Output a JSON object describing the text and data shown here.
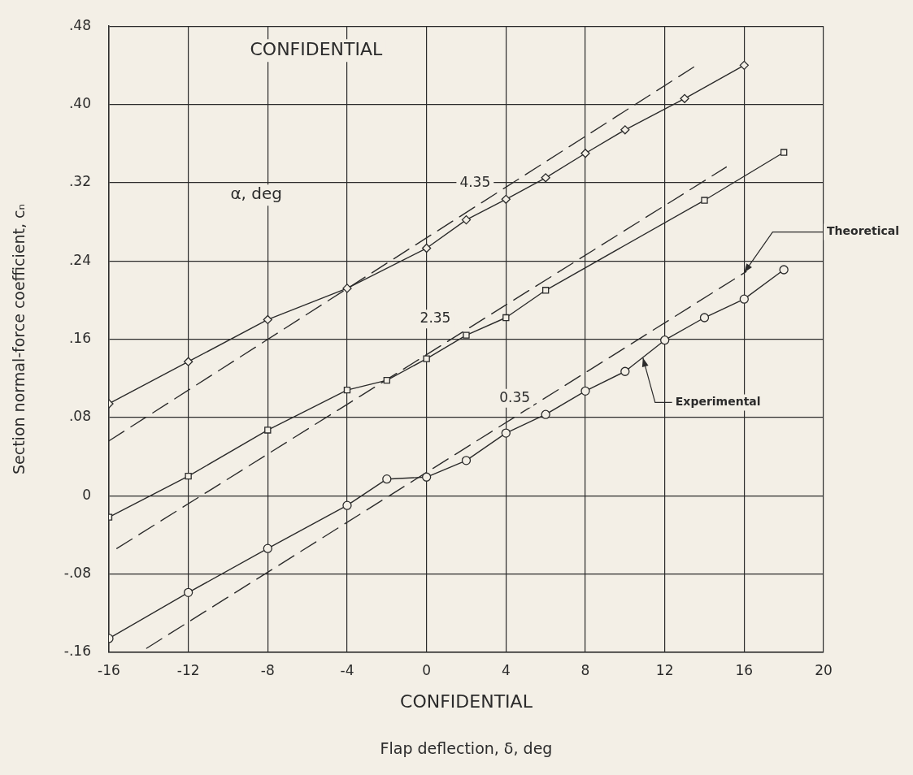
{
  "chart_data": {
    "type": "line",
    "title": "CONFIDENTIAL",
    "xlabel": "Flap deflection, δ, deg",
    "ylabel": "Section normal-force coefficient, cₙ",
    "xlim": [
      -16,
      20
    ],
    "xticks": [
      -16,
      -12,
      -8,
      -4,
      0,
      4,
      8,
      12,
      16,
      20
    ],
    "ylim": [
      -0.16,
      0.48
    ],
    "yticks": [
      {
        "value": -0.16,
        "label": "-.16"
      },
      {
        "value": -0.08,
        "label": "-.08"
      },
      {
        "value": 0,
        "label": "0"
      },
      {
        "value": 0.08,
        "label": ".08"
      },
      {
        "value": 0.16,
        "label": ".16"
      },
      {
        "value": 0.24,
        "label": ".24"
      },
      {
        "value": 0.32,
        "label": ".32"
      },
      {
        "value": 0.4,
        "label": ".40"
      },
      {
        "value": 0.48,
        "label": ".48"
      }
    ],
    "grid": true,
    "legend": false,
    "series": [
      {
        "name": "4.35",
        "color": "#2b2b2b",
        "marker": "diamond",
        "line_style": "solid",
        "x": [
          -16,
          -12,
          -8,
          -4,
          0,
          2,
          4,
          6,
          8,
          10,
          13,
          16
        ],
        "values": [
          0.094,
          0.137,
          0.18,
          0.212,
          0.253,
          0.282,
          0.303,
          0.325,
          0.35,
          0.374,
          0.406,
          0.44
        ]
      },
      {
        "color": "#2b2b2b",
        "marker": "none",
        "line_style": "dashed",
        "x": [
          -16,
          13.6
        ],
        "values": [
          0.056,
          0.44
        ]
      },
      {
        "name": "2.35",
        "color": "#2b2b2b",
        "marker": "square",
        "line_style": "solid",
        "x": [
          -16,
          -12,
          -8,
          -4,
          -2,
          0,
          2,
          4,
          6,
          14,
          18
        ],
        "values": [
          -0.022,
          0.02,
          0.067,
          0.108,
          0.118,
          0.14,
          0.164,
          0.182,
          0.21,
          0.302,
          0.351
        ]
      },
      {
        "color": "#2b2b2b",
        "marker": "none",
        "line_style": "dashed",
        "x": [
          -15.6,
          15.1
        ],
        "values": [
          -0.054,
          0.336
        ]
      },
      {
        "name": "0.35",
        "color": "#2b2b2b",
        "marker": "circle",
        "line_style": "solid",
        "x": [
          -16,
          -12,
          -8,
          -4,
          -2,
          0,
          2,
          4,
          6,
          8,
          10,
          12,
          14,
          16,
          18
        ],
        "values": [
          -0.146,
          -0.099,
          -0.054,
          -0.01,
          0.017,
          0.019,
          0.036,
          0.064,
          0.083,
          0.107,
          0.127,
          0.159,
          0.182,
          0.201,
          0.231
        ]
      },
      {
        "color": "#2b2b2b",
        "marker": "none",
        "line_style": "dashed",
        "x": [
          -14.1,
          16.1
        ],
        "values": [
          -0.156,
          0.229
        ]
      }
    ],
    "annotations": [
      "α, deg",
      "CONFIDENTIAL",
      {
        "text": "Theoretical",
        "x": 16,
        "y": 0.228
      },
      {
        "text": "Experimental",
        "x": 10.9,
        "y": 0.141
      }
    ]
  }
}
